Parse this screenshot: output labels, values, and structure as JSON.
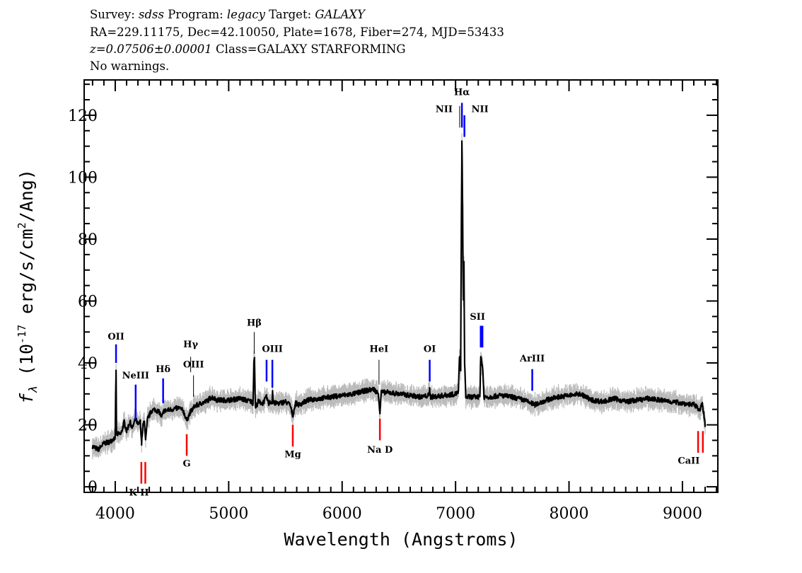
{
  "header": {
    "line1": {
      "survey_key": "Survey: ",
      "survey": "sdss",
      "program_key": " Program: ",
      "program": "legacy",
      "target_key": " Target: ",
      "target": "GALAXY"
    },
    "line2": "RA=229.11175, Dec=42.10050, Plate=1678, Fiber=274, MJD=53433",
    "line3": {
      "z": "z=0.07506±0.00001",
      "class": " Class=GALAXY STARFORMING"
    },
    "line4": "No warnings."
  },
  "colors": {
    "flux": "#000000",
    "error": "#bbbbbb",
    "emission": "#0000ff",
    "emission_alt": "#000000",
    "absorption": "#ff0000"
  },
  "chart_data": {
    "type": "line",
    "title": "",
    "xlabel": "Wavelength (Angstroms)",
    "ylabel": {
      "f": "f",
      "sub": "λ",
      "a": " (10",
      "exp1": "-17",
      "b": " erg/s/cm",
      "exp2": "2",
      "c": "/Ang)"
    },
    "xlim": [
      3726,
      9312
    ],
    "ylim": [
      -1.8,
      131.4
    ],
    "xticks": [
      4000,
      5000,
      6000,
      7000,
      8000,
      9000
    ],
    "yticks": [
      0,
      20,
      40,
      60,
      80,
      100,
      120
    ],
    "x_minor_step": 100,
    "y_minor_step": 5,
    "grid": false,
    "series": [
      {
        "name": "flux",
        "points": [
          [
            3800,
            13
          ],
          [
            3850,
            12
          ],
          [
            3900,
            14
          ],
          [
            3950,
            14.5
          ],
          [
            4000,
            16
          ],
          [
            4004,
            30
          ],
          [
            4007,
            37
          ],
          [
            4011,
            17
          ],
          [
            4050,
            17
          ],
          [
            4080,
            21
          ],
          [
            4100,
            18
          ],
          [
            4130,
            21
          ],
          [
            4150,
            19
          ],
          [
            4180,
            22
          ],
          [
            4200,
            20
          ],
          [
            4222,
            21
          ],
          [
            4232,
            14
          ],
          [
            4245,
            20
          ],
          [
            4258,
            21
          ],
          [
            4268,
            15
          ],
          [
            4285,
            22
          ],
          [
            4320,
            24.5
          ],
          [
            4350,
            25
          ],
          [
            4390,
            24
          ],
          [
            4410,
            22.5
          ],
          [
            4430,
            24.5
          ],
          [
            4500,
            25
          ],
          [
            4560,
            25.5
          ],
          [
            4600,
            24.5
          ],
          [
            4630,
            21.5
          ],
          [
            4660,
            24
          ],
          [
            4700,
            26
          ],
          [
            4760,
            27
          ],
          [
            4800,
            27.5
          ],
          [
            4850,
            29
          ],
          [
            4900,
            28
          ],
          [
            5000,
            28
          ],
          [
            5100,
            28.5
          ],
          [
            5200,
            27.5
          ],
          [
            5215,
            27
          ],
          [
            5222,
            41
          ],
          [
            5228,
            41
          ],
          [
            5235,
            25.5
          ],
          [
            5260,
            27.5
          ],
          [
            5300,
            27
          ],
          [
            5334,
            29
          ],
          [
            5350,
            27
          ],
          [
            5383,
            27.5
          ],
          [
            5387,
            31
          ],
          [
            5392,
            27
          ],
          [
            5450,
            27
          ],
          [
            5500,
            27.5
          ],
          [
            5540,
            26.5
          ],
          [
            5565,
            23
          ],
          [
            5590,
            27
          ],
          [
            5620,
            26.5
          ],
          [
            5700,
            28
          ],
          [
            5800,
            28.5
          ],
          [
            5900,
            29
          ],
          [
            6000,
            29.5
          ],
          [
            6100,
            30
          ],
          [
            6200,
            31
          ],
          [
            6280,
            31.5
          ],
          [
            6320,
            30
          ],
          [
            6333,
            24
          ],
          [
            6345,
            30.5
          ],
          [
            6400,
            30.5
          ],
          [
            6500,
            30
          ],
          [
            6600,
            29.5
          ],
          [
            6700,
            29
          ],
          [
            6765,
            29.5
          ],
          [
            6772,
            31.5
          ],
          [
            6780,
            29
          ],
          [
            6900,
            29.5
          ],
          [
            7000,
            30
          ],
          [
            7025,
            30.5
          ],
          [
            7035,
            42
          ],
          [
            7045,
            38
          ],
          [
            7052,
            90
          ],
          [
            7056,
            111
          ],
          [
            7062,
            90
          ],
          [
            7068,
            60
          ],
          [
            7074,
            72
          ],
          [
            7080,
            40
          ],
          [
            7090,
            29
          ],
          [
            7150,
            29
          ],
          [
            7200,
            29
          ],
          [
            7215,
            30
          ],
          [
            7222,
            42
          ],
          [
            7232,
            40
          ],
          [
            7240,
            38
          ],
          [
            7250,
            29
          ],
          [
            7300,
            29
          ],
          [
            7400,
            29.5
          ],
          [
            7500,
            29
          ],
          [
            7600,
            28
          ],
          [
            7700,
            26.5
          ],
          [
            7800,
            28
          ],
          [
            7900,
            29
          ],
          [
            8000,
            29.5
          ],
          [
            8100,
            30
          ],
          [
            8200,
            28
          ],
          [
            8300,
            27.5
          ],
          [
            8400,
            28.5
          ],
          [
            8500,
            27.5
          ],
          [
            8600,
            28
          ],
          [
            8700,
            28.5
          ],
          [
            8800,
            28
          ],
          [
            8900,
            27.5
          ],
          [
            9000,
            27
          ],
          [
            9100,
            26.5
          ],
          [
            9150,
            25
          ],
          [
            9175,
            26.5
          ],
          [
            9190,
            23
          ],
          [
            9200,
            20
          ]
        ]
      }
    ],
    "lines": [
      {
        "label": "OII",
        "wave": 4007,
        "kind": "emission",
        "mark": [
          40,
          46
        ],
        "label_flux": 47.5
      },
      {
        "label": "NeIII",
        "wave": 4180,
        "kind": "emission",
        "mark": [
          22,
          33
        ],
        "label_flux": 35
      },
      {
        "label": "Hδ",
        "wave": 4422,
        "kind": "emission",
        "mark": [
          27,
          35
        ],
        "label_flux": 37
      },
      {
        "label": "Hγ",
        "wave": 4665,
        "kind": "emission_alt",
        "mark": [
          37,
          42
        ],
        "label_flux": 45
      },
      {
        "label": "OIII",
        "wave": 4690,
        "kind": "emission_alt",
        "mark": [
          29,
          36
        ],
        "label_flux": 38.5
      },
      {
        "label": "Hβ",
        "wave": 5225,
        "kind": "emission_alt",
        "mark": [
          43,
          50
        ],
        "label_flux": 52
      },
      {
        "label": "",
        "wave": 5334,
        "kind": "emission",
        "mark": [
          34,
          41
        ],
        "label_flux": 0
      },
      {
        "label": "OIII",
        "wave": 5385,
        "kind": "emission",
        "mark": [
          32,
          41
        ],
        "label_flux": 43.5
      },
      {
        "label": "HeI",
        "wave": 6325,
        "kind": "emission_alt",
        "mark": [
          33,
          41
        ],
        "label_flux": 43.5
      },
      {
        "label": "OI",
        "wave": 6772,
        "kind": "emission",
        "mark": [
          34,
          41
        ],
        "label_flux": 43.5
      },
      {
        "label": "NII",
        "wave": 7036,
        "kind": "emission_alt",
        "mark": [
          116,
          123
        ],
        "label_flux": 121,
        "dx": -22
      },
      {
        "label": "Hα",
        "wave": 7056,
        "kind": "emission",
        "mark": [
          116,
          124
        ],
        "label_flux": 126.5
      },
      {
        "label": "NII",
        "wave": 7078,
        "kind": "emission",
        "mark": [
          113,
          120
        ],
        "label_flux": 121,
        "dx": 22
      },
      {
        "label": "",
        "wave": 7222,
        "kind": "emission",
        "mark": [
          45,
          52
        ],
        "label_flux": 0
      },
      {
        "label": "SII",
        "wave": 7237,
        "kind": "emission",
        "mark": [
          45,
          52
        ],
        "label_flux": 54,
        "dx": -7
      },
      {
        "label": "ArIII",
        "wave": 7676,
        "kind": "emission",
        "mark": [
          31,
          38
        ],
        "label_flux": 40.5
      },
      {
        "label": "",
        "wave": 4230,
        "kind": "absorption",
        "mark": [
          1,
          8
        ],
        "label_flux": 0
      },
      {
        "label": "K H",
        "wave": 4265,
        "kind": "absorption",
        "mark": [
          1,
          8
        ],
        "label_flux": -2.8,
        "dx": -9
      },
      {
        "label": "G",
        "wave": 4630,
        "kind": "absorption",
        "mark": [
          10,
          17
        ],
        "label_flux": 6.5
      },
      {
        "label": "Mg",
        "wave": 5565,
        "kind": "absorption",
        "mark": [
          13,
          20
        ],
        "label_flux": 9.5
      },
      {
        "label": "Na  D",
        "wave": 6333,
        "kind": "absorption",
        "mark": [
          15,
          22
        ],
        "label_flux": 11
      },
      {
        "label": "",
        "wave": 9138,
        "kind": "absorption",
        "mark": [
          11,
          18
        ],
        "label_flux": 0
      },
      {
        "label": "CaII",
        "wave": 9180,
        "kind": "absorption",
        "mark": [
          11,
          18
        ],
        "label_flux": 7.5,
        "dx": -20
      }
    ]
  }
}
